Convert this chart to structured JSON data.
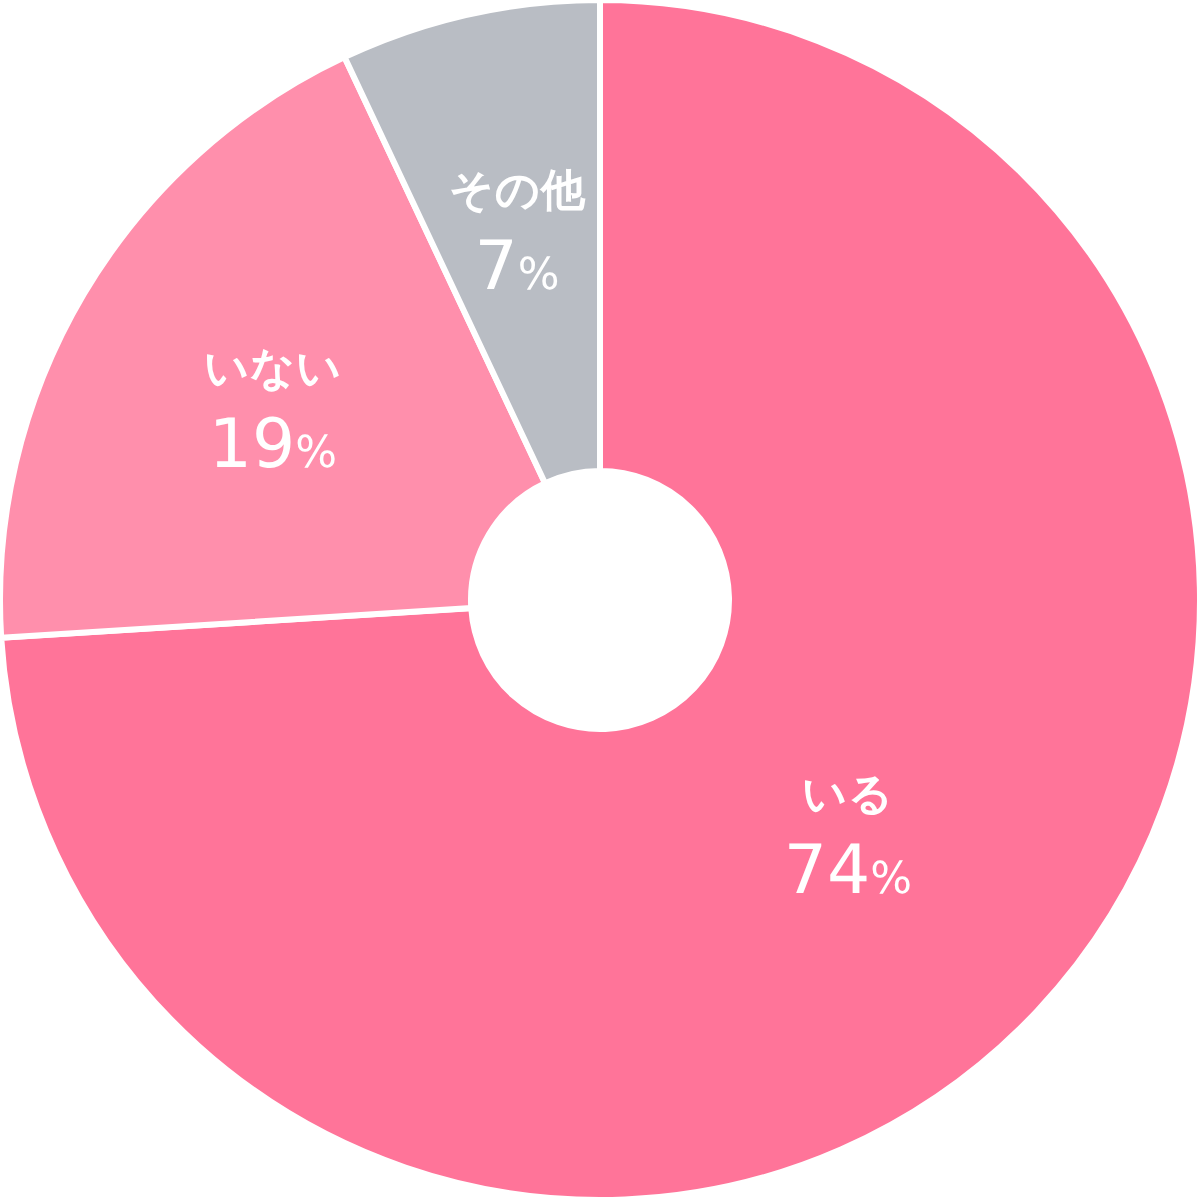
{
  "chart_data": {
    "type": "donut",
    "categories": [
      "いる",
      "いない",
      "その他"
    ],
    "values": [
      74,
      19,
      7
    ],
    "colors": [
      "#ff7499",
      "#ff8fac",
      "#b9bdc4"
    ],
    "value_labels": [
      "74%",
      "19%",
      "7%"
    ]
  }
}
